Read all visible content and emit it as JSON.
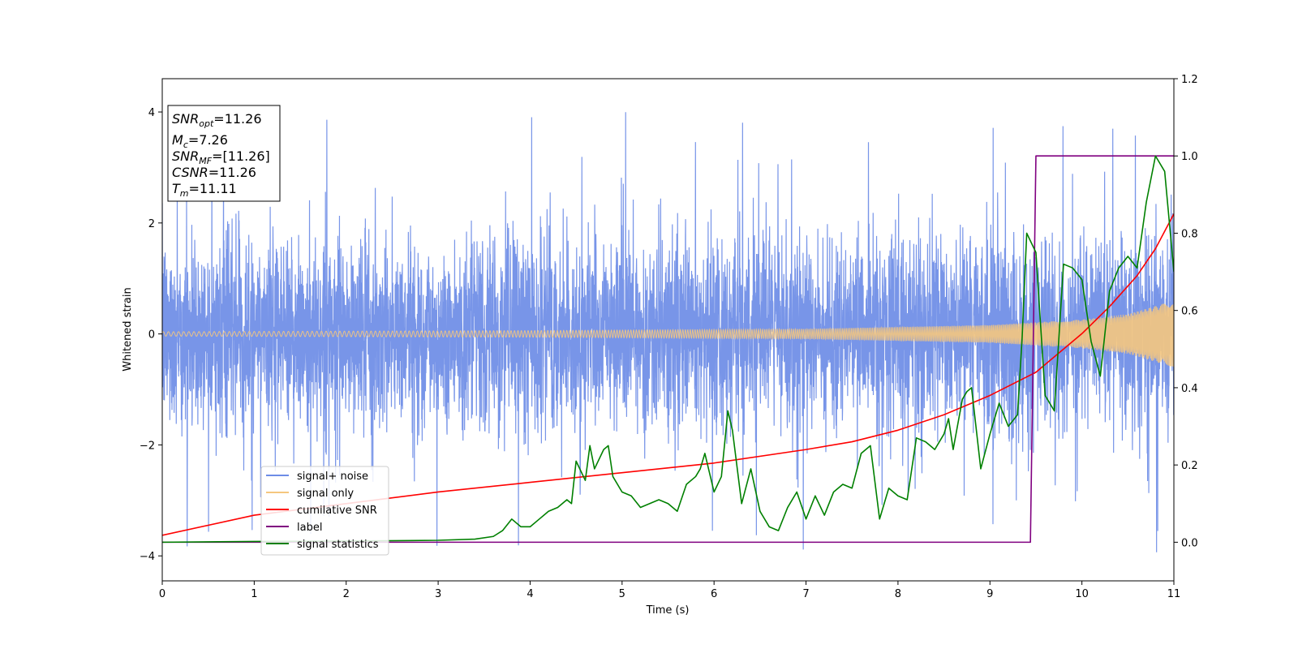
{
  "chart_data": {
    "type": "line",
    "xlabel": "Time (s)",
    "ylabel": "Whitened strain",
    "xlim": [
      0,
      11
    ],
    "ylim_left": [
      -4.45,
      4.6
    ],
    "ylim_right": [
      -0.1,
      1.2
    ],
    "x_ticks": [
      "0",
      "1",
      "2",
      "3",
      "4",
      "5",
      "6",
      "7",
      "8",
      "9",
      "10",
      "11"
    ],
    "y_ticks_left": [
      "−4",
      "−2",
      "0",
      "2",
      "4"
    ],
    "y_ticks_right": [
      "0.0",
      "0.2",
      "0.4",
      "0.6",
      "0.8",
      "1.0",
      "1.2"
    ],
    "grid": false,
    "legend_position": "lower-left",
    "stats_box": {
      "snr_opt": {
        "sym": "SNR",
        "sub": "opt",
        "val": "=11.26"
      },
      "mc": {
        "sym": "M",
        "sub": "c",
        "val": "=7.26"
      },
      "snr_mf": {
        "sym": "SNR",
        "sub": "MF",
        "val": "=[11.26]"
      },
      "csnr": {
        "sym": "CSNR",
        "val": "=11.26"
      },
      "tm": {
        "sym": "T",
        "sub": "m",
        "val": "=11.11"
      }
    },
    "series": [
      {
        "name": "signal+ noise",
        "color": "#6d8ce6",
        "axis": "left",
        "description_values": {
          "noise_std": 0.85,
          "spike_max": 4.2,
          "spike_min": -4.05
        }
      },
      {
        "name": "signal only",
        "color": "#f5c77e",
        "axis": "left",
        "envelope": {
          "x": [
            0,
            4,
            7,
            9,
            10,
            10.5,
            11
          ],
          "amplitude": [
            0.04,
            0.06,
            0.09,
            0.16,
            0.26,
            0.36,
            0.6
          ]
        }
      },
      {
        "name": "cumilative SNR",
        "color": "#ff0000",
        "axis": "right",
        "x": [
          0,
          1,
          2,
          3,
          4,
          5,
          6,
          7,
          7.5,
          8,
          8.5,
          9,
          9.5,
          10,
          10.3,
          10.6,
          10.8,
          11
        ],
        "y": [
          0.018,
          0.07,
          0.1,
          0.13,
          0.155,
          0.18,
          0.205,
          0.24,
          0.26,
          0.29,
          0.33,
          0.38,
          0.44,
          0.54,
          0.61,
          0.69,
          0.76,
          0.85
        ]
      },
      {
        "name": "label",
        "color": "#800080",
        "axis": "right",
        "x": [
          0,
          9.44,
          9.5,
          11
        ],
        "y": [
          0,
          0,
          1,
          1
        ]
      },
      {
        "name": "signal statistics",
        "color": "#008000",
        "axis": "right",
        "x": [
          0,
          1,
          2,
          3,
          3.4,
          3.6,
          3.7,
          3.8,
          3.9,
          4.0,
          4.1,
          4.2,
          4.3,
          4.4,
          4.45,
          4.5,
          4.6,
          4.65,
          4.7,
          4.8,
          4.85,
          4.9,
          5.0,
          5.1,
          5.2,
          5.3,
          5.4,
          5.5,
          5.6,
          5.7,
          5.8,
          5.85,
          5.9,
          6.0,
          6.08,
          6.15,
          6.2,
          6.3,
          6.4,
          6.5,
          6.6,
          6.7,
          6.8,
          6.9,
          7.0,
          7.1,
          7.2,
          7.3,
          7.4,
          7.5,
          7.6,
          7.7,
          7.8,
          7.9,
          8.0,
          8.1,
          8.2,
          8.3,
          8.4,
          8.5,
          8.55,
          8.6,
          8.7,
          8.75,
          8.8,
          8.9,
          9.0,
          9.1,
          9.2,
          9.3,
          9.35,
          9.4,
          9.5,
          9.6,
          9.7,
          9.8,
          9.9,
          10.0,
          10.1,
          10.2,
          10.3,
          10.4,
          10.5,
          10.6,
          10.7,
          10.8,
          10.9,
          11.0
        ],
        "y": [
          0.0,
          0.002,
          0.003,
          0.005,
          0.008,
          0.015,
          0.03,
          0.06,
          0.04,
          0.04,
          0.06,
          0.08,
          0.09,
          0.11,
          0.1,
          0.21,
          0.16,
          0.25,
          0.19,
          0.24,
          0.25,
          0.17,
          0.13,
          0.12,
          0.09,
          0.1,
          0.11,
          0.1,
          0.08,
          0.15,
          0.17,
          0.19,
          0.23,
          0.13,
          0.17,
          0.34,
          0.29,
          0.1,
          0.19,
          0.08,
          0.04,
          0.03,
          0.09,
          0.13,
          0.06,
          0.12,
          0.07,
          0.13,
          0.15,
          0.14,
          0.23,
          0.25,
          0.06,
          0.14,
          0.12,
          0.11,
          0.27,
          0.26,
          0.24,
          0.28,
          0.32,
          0.24,
          0.37,
          0.39,
          0.4,
          0.19,
          0.28,
          0.36,
          0.3,
          0.33,
          0.53,
          0.8,
          0.75,
          0.38,
          0.34,
          0.72,
          0.71,
          0.68,
          0.52,
          0.43,
          0.65,
          0.71,
          0.74,
          0.71,
          0.88,
          1.0,
          0.96,
          0.7
        ]
      }
    ]
  }
}
